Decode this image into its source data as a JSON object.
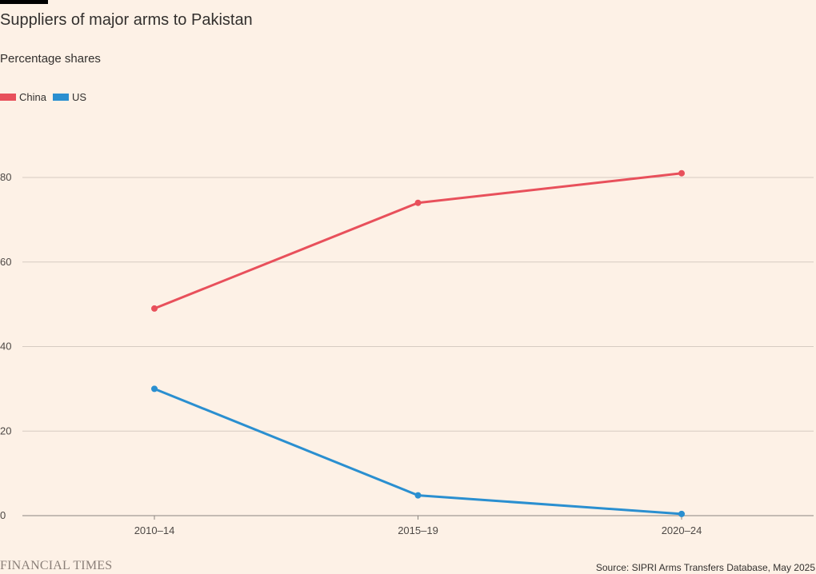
{
  "header": {
    "title": "Suppliers of major arms to Pakistan",
    "subtitle": "Percentage shares"
  },
  "footer": {
    "brand": "FINANCIAL TIMES",
    "source": "Source: SIPRI Arms Transfers Database, May 2025"
  },
  "colors": {
    "background": "#fdf1e6",
    "china": "#e8505b",
    "us": "#2a8fd0",
    "grid": "#d6cbc2",
    "axis": "#8a8580"
  },
  "chart_data": {
    "type": "line",
    "title": "Suppliers of major arms to Pakistan",
    "subtitle": "Percentage shares",
    "categories": [
      "2010–14",
      "2015–19",
      "2020–24"
    ],
    "series": [
      {
        "name": "China",
        "color": "#e8505b",
        "values": [
          49,
          74,
          81
        ]
      },
      {
        "name": "US",
        "color": "#2a8fd0",
        "values": [
          30,
          4.8,
          0.4
        ]
      }
    ],
    "yticks": [
      0,
      20,
      40,
      60,
      80
    ],
    "ylim": [
      0,
      80
    ],
    "grid": true,
    "legend": "top-left",
    "xlabel": "",
    "ylabel": ""
  }
}
